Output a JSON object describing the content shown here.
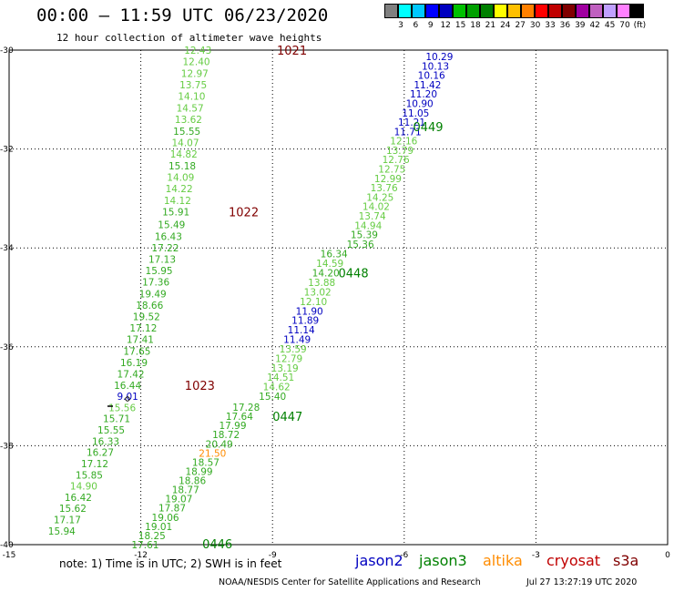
{
  "title": "00:00 – 11:59 UTC 06/23/2020",
  "subtitle": "12 hour collection of altimeter wave heights",
  "colorbar": {
    "colors": [
      "#808080",
      "#00ffff",
      "#00c8ff",
      "#0000ff",
      "#0000c0",
      "#00c000",
      "#00a000",
      "#008000",
      "#ffff00",
      "#ffc000",
      "#ff8000",
      "#ff0000",
      "#c00000",
      "#800000",
      "#a000a0",
      "#c060c0",
      "#c0a0ff",
      "#ff80ff",
      "#000000"
    ],
    "labels": [
      "3",
      "6",
      "9",
      "12",
      "15",
      "18",
      "21",
      "24",
      "27",
      "30",
      "33",
      "36",
      "39",
      "42",
      "45",
      "70",
      "(ft)"
    ]
  },
  "axes": {
    "x_ticks": [
      "-15",
      "-12",
      "-9",
      "-6",
      "-3",
      "0"
    ],
    "y_ticks": [
      "-30",
      "-32",
      "-34",
      "-36",
      "-38",
      "-40"
    ]
  },
  "colors": {
    "jason2": "#0000c0",
    "jason3": "#008000",
    "altika": "#ff8c00",
    "cryosat": "#c00000",
    "s3a": "#800000",
    "light": "#66cc44",
    "mid": "#33aa22"
  },
  "tracks": [
    {
      "id": "1021",
      "color": "s3a",
      "label_x": -8.9,
      "label_y": -30.0,
      "values": [
        "12.43",
        "12.40",
        "12.97",
        "13.75",
        "14.10",
        "14.57",
        "13.62",
        "15.55",
        "14.07",
        "14.82",
        "15.18",
        "14.09",
        "14.22",
        "14.12",
        "15.91"
      ],
      "colors": [
        "light",
        "light",
        "light",
        "light",
        "light",
        "light",
        "light",
        "mid",
        "light",
        "light",
        "mid",
        "light",
        "light",
        "light",
        "mid"
      ],
      "x0": -10.7,
      "y0": -30.0,
      "x1": -11.2,
      "y1": -33.27
    },
    {
      "id": "1022",
      "color": "s3a",
      "label_x": -10.0,
      "label_y": -33.27,
      "values": [
        "15.49",
        "16.43",
        "17.22",
        "17.13",
        "15.95",
        "17.36",
        "19.49",
        "18.66",
        "19.52",
        "17.12",
        "17.41",
        "17.65",
        "16.19",
        "17.42",
        "16.44"
      ],
      "colors": [
        "mid",
        "mid",
        "mid",
        "mid",
        "mid",
        "mid",
        "mid",
        "mid",
        "mid",
        "mid",
        "mid",
        "mid",
        "mid",
        "mid",
        "mid"
      ],
      "x0": -11.3,
      "y0": -33.53,
      "x1": -12.3,
      "y1": -36.78
    },
    {
      "id": "1023",
      "color": "s3a",
      "label_x": -11.0,
      "label_y": -36.78,
      "values": [
        "9.01",
        "15.56",
        "15.71",
        "15.55",
        "16.33",
        "16.27",
        "17.12",
        "15.85",
        "14.90",
        "16.42",
        "15.62",
        "17.17",
        "15.94"
      ],
      "colors": [
        "jason2",
        "light",
        "mid",
        "mid",
        "mid",
        "mid",
        "mid",
        "mid",
        "light",
        "mid",
        "mid",
        "mid",
        "mid"
      ],
      "x0": -12.3,
      "y0": -37.0,
      "x1": -13.8,
      "y1": -39.72
    },
    {
      "id": "0449",
      "color": "jason3",
      "label_x": -5.8,
      "label_y": -31.55,
      "values": [
        "10.29",
        "10.13",
        "10.16",
        "11.42",
        "11.20",
        "10.90",
        "11.05",
        "11.21",
        "11.71",
        "12.16",
        "13.79",
        "12.76",
        "12.75",
        "12.99",
        "13.76",
        "14.25",
        "14.02",
        "13.74",
        "14.94",
        "15.39",
        "15.36"
      ],
      "colors": [
        "jason2",
        "jason2",
        "jason2",
        "jason2",
        "jason2",
        "jason2",
        "jason2",
        "jason2",
        "jason2",
        "light",
        "light",
        "light",
        "light",
        "light",
        "light",
        "light",
        "light",
        "light",
        "light",
        "mid",
        "mid"
      ],
      "x0": -5.2,
      "y0": -30.13,
      "x1": -7.0,
      "y1": -33.92
    },
    {
      "id": "0448",
      "color": "jason3",
      "label_x": -7.5,
      "label_y": -34.5,
      "values": [
        "16.34",
        "14.59",
        "14.20",
        "13.88",
        "13.02",
        "12.10",
        "11.90",
        "11.89",
        "11.14",
        "11.49",
        "13.59",
        "12.79",
        "13.19",
        "14.51",
        "14.62",
        "15.40"
      ],
      "colors": [
        "mid",
        "light",
        "mid",
        "light",
        "light",
        "light",
        "jason2",
        "jason2",
        "jason2",
        "jason2",
        "light",
        "light",
        "light",
        "light",
        "light",
        "mid"
      ],
      "x0": -7.6,
      "y0": -34.12,
      "x1": -9.0,
      "y1": -37.0
    },
    {
      "id": "0447",
      "color": "jason3",
      "label_x": -9.0,
      "label_y": -37.4,
      "values": [
        "17.28",
        "17.64",
        "17.99",
        "18.72",
        "20.49",
        "21.50",
        "18.57",
        "18.99",
        "18.86",
        "18.77",
        "19.07",
        "17.87",
        "19.06",
        "19.01",
        "18.25",
        "17.61"
      ],
      "colors": [
        "mid",
        "mid",
        "mid",
        "mid",
        "mid",
        "altika",
        "mid",
        "mid",
        "mid",
        "mid",
        "mid",
        "mid",
        "mid",
        "mid",
        "mid",
        "mid"
      ],
      "x0": -9.6,
      "y0": -37.22,
      "x1": -11.9,
      "y1": -40.0
    },
    {
      "id": "0446",
      "color": "jason3",
      "label_x": -10.6,
      "label_y": -39.98,
      "values": [],
      "colors": [],
      "x0": 0,
      "y0": 0,
      "x1": 0,
      "y1": 0
    }
  ],
  "note": "note: 1) Time is in UTC; 2) SWH is in feet",
  "legend": [
    {
      "name": "jason2",
      "color": "#0000c0",
      "x": 390
    },
    {
      "name": "jason3",
      "color": "#008000",
      "x": 460
    },
    {
      "name": "altika",
      "color": "#ff8c00",
      "x": 530
    },
    {
      "name": "cryosat",
      "color": "#c00000",
      "x": 600
    },
    {
      "name": "s3a",
      "color": "#800000",
      "x": 673
    }
  ],
  "credit": "NOAA/NESDIS Center for Satellite Applications and Research",
  "timestamp": "Jul 27 13:27:19 UTC 2020"
}
